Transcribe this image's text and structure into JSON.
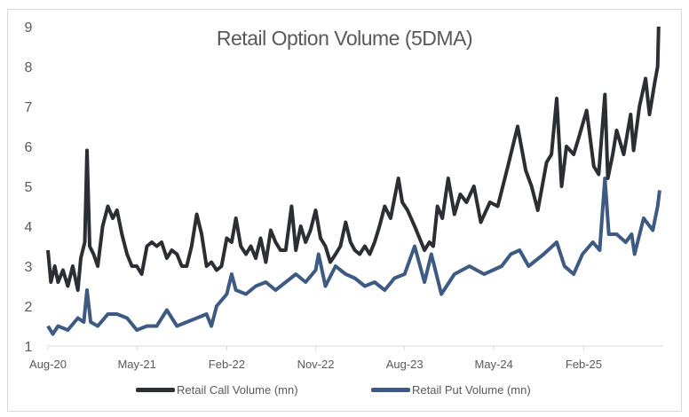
{
  "chart_data": {
    "type": "line",
    "title": "Retail Option Volume (5DMA)",
    "xlabel": "",
    "ylabel": "",
    "ylim": [
      1,
      9
    ],
    "yticks": [
      "1",
      "2",
      "3",
      "4",
      "5",
      "6",
      "7",
      "8",
      "9"
    ],
    "xlim": [
      "2020-08-01",
      "2025-09-25"
    ],
    "xticks": [
      {
        "date": "2020-08-01",
        "label": "Aug-20"
      },
      {
        "date": "2021-05-01",
        "label": "May-21"
      },
      {
        "date": "2022-02-01",
        "label": "Feb-22"
      },
      {
        "date": "2022-11-01",
        "label": "Nov-22"
      },
      {
        "date": "2023-08-01",
        "label": "Aug-23"
      },
      {
        "date": "2024-05-01",
        "label": "May-24"
      },
      {
        "date": "2025-02-01",
        "label": "Feb-25"
      }
    ],
    "grid": false,
    "legend_position": "bottom",
    "series": [
      {
        "name": "Retail Call Volume (mn)",
        "color": "#2b2e33",
        "points": [
          [
            "2020-08-01",
            3.4
          ],
          [
            "2020-08-10",
            2.6
          ],
          [
            "2020-08-22",
            3.0
          ],
          [
            "2020-09-01",
            2.6
          ],
          [
            "2020-09-16",
            2.9
          ],
          [
            "2020-10-01",
            2.5
          ],
          [
            "2020-10-16",
            3.0
          ],
          [
            "2020-11-01",
            2.4
          ],
          [
            "2020-11-10",
            3.2
          ],
          [
            "2020-11-22",
            3.6
          ],
          [
            "2020-11-29",
            5.9
          ],
          [
            "2020-12-07",
            3.5
          ],
          [
            "2020-12-19",
            3.3
          ],
          [
            "2021-01-01",
            3.0
          ],
          [
            "2021-01-16",
            4.0
          ],
          [
            "2021-02-01",
            4.5
          ],
          [
            "2021-02-16",
            4.2
          ],
          [
            "2021-03-01",
            4.4
          ],
          [
            "2021-03-16",
            3.8
          ],
          [
            "2021-04-01",
            3.3
          ],
          [
            "2021-04-16",
            3.0
          ],
          [
            "2021-05-01",
            3.0
          ],
          [
            "2021-05-16",
            2.8
          ],
          [
            "2021-06-01",
            3.5
          ],
          [
            "2021-06-16",
            3.6
          ],
          [
            "2021-07-01",
            3.5
          ],
          [
            "2021-07-16",
            3.6
          ],
          [
            "2021-08-01",
            3.2
          ],
          [
            "2021-08-16",
            3.4
          ],
          [
            "2021-09-01",
            3.3
          ],
          [
            "2021-09-16",
            3.0
          ],
          [
            "2021-10-01",
            3.0
          ],
          [
            "2021-10-16",
            3.5
          ],
          [
            "2021-11-01",
            4.3
          ],
          [
            "2021-11-16",
            3.8
          ],
          [
            "2021-12-01",
            3.0
          ],
          [
            "2021-12-16",
            3.1
          ],
          [
            "2022-01-01",
            2.9
          ],
          [
            "2022-01-16",
            3.0
          ],
          [
            "2022-02-01",
            3.7
          ],
          [
            "2022-02-16",
            3.6
          ],
          [
            "2022-03-01",
            4.2
          ],
          [
            "2022-03-16",
            3.5
          ],
          [
            "2022-04-01",
            3.3
          ],
          [
            "2022-04-16",
            3.5
          ],
          [
            "2022-05-01",
            3.2
          ],
          [
            "2022-05-16",
            3.7
          ],
          [
            "2022-06-01",
            3.1
          ],
          [
            "2022-06-16",
            3.9
          ],
          [
            "2022-07-01",
            3.6
          ],
          [
            "2022-07-16",
            3.4
          ],
          [
            "2022-08-01",
            3.4
          ],
          [
            "2022-08-19",
            4.5
          ],
          [
            "2022-09-01",
            3.4
          ],
          [
            "2022-09-16",
            4.0
          ],
          [
            "2022-10-01",
            3.6
          ],
          [
            "2022-10-16",
            3.9
          ],
          [
            "2022-11-01",
            4.4
          ],
          [
            "2022-11-16",
            3.7
          ],
          [
            "2022-12-01",
            3.5
          ],
          [
            "2022-12-16",
            3.1
          ],
          [
            "2023-01-01",
            3.3
          ],
          [
            "2023-01-16",
            3.5
          ],
          [
            "2023-02-01",
            4.1
          ],
          [
            "2023-02-16",
            3.6
          ],
          [
            "2023-03-01",
            3.4
          ],
          [
            "2023-03-16",
            3.3
          ],
          [
            "2023-04-01",
            3.5
          ],
          [
            "2023-04-16",
            3.3
          ],
          [
            "2023-05-01",
            3.6
          ],
          [
            "2023-05-16",
            4.0
          ],
          [
            "2023-06-01",
            4.5
          ],
          [
            "2023-06-19",
            4.2
          ],
          [
            "2023-07-13",
            5.2
          ],
          [
            "2023-07-25",
            4.6
          ],
          [
            "2023-08-10",
            4.4
          ],
          [
            "2023-09-01",
            4.0
          ],
          [
            "2023-10-01",
            3.4
          ],
          [
            "2023-10-16",
            3.6
          ],
          [
            "2023-10-28",
            3.5
          ],
          [
            "2023-11-10",
            4.5
          ],
          [
            "2023-11-25",
            4.2
          ],
          [
            "2023-12-13",
            5.2
          ],
          [
            "2024-01-01",
            4.3
          ],
          [
            "2024-01-19",
            4.8
          ],
          [
            "2024-02-07",
            4.6
          ],
          [
            "2024-03-01",
            5.0
          ],
          [
            "2024-03-22",
            4.1
          ],
          [
            "2024-04-19",
            4.6
          ],
          [
            "2024-05-13",
            4.5
          ],
          [
            "2024-06-13",
            5.5
          ],
          [
            "2024-07-13",
            6.5
          ],
          [
            "2024-08-07",
            5.4
          ],
          [
            "2024-08-25",
            5.0
          ],
          [
            "2024-09-13",
            4.4
          ],
          [
            "2024-10-10",
            5.6
          ],
          [
            "2024-10-25",
            5.8
          ],
          [
            "2024-11-10",
            7.2
          ],
          [
            "2024-11-25",
            5.0
          ],
          [
            "2024-12-10",
            6.0
          ],
          [
            "2025-01-01",
            5.8
          ],
          [
            "2025-01-16",
            6.2
          ],
          [
            "2025-02-10",
            6.9
          ],
          [
            "2025-03-04",
            5.5
          ],
          [
            "2025-03-19",
            5.3
          ],
          [
            "2025-04-07",
            7.3
          ],
          [
            "2025-04-16",
            5.2
          ],
          [
            "2025-05-01",
            5.8
          ],
          [
            "2025-05-13",
            6.4
          ],
          [
            "2025-06-04",
            5.8
          ],
          [
            "2025-06-25",
            6.8
          ],
          [
            "2025-07-04",
            5.9
          ],
          [
            "2025-07-22",
            7.0
          ],
          [
            "2025-08-10",
            7.7
          ],
          [
            "2025-08-22",
            6.8
          ],
          [
            "2025-09-07",
            7.6
          ],
          [
            "2025-09-16",
            8.0
          ],
          [
            "2025-09-19",
            9.0
          ]
        ]
      },
      {
        "name": "Retail Put Volume (mn)",
        "color": "#3e5a82",
        "points": [
          [
            "2020-08-01",
            1.5
          ],
          [
            "2020-08-16",
            1.3
          ],
          [
            "2020-09-01",
            1.5
          ],
          [
            "2020-10-01",
            1.4
          ],
          [
            "2020-11-01",
            1.7
          ],
          [
            "2020-11-19",
            1.6
          ],
          [
            "2020-11-29",
            2.4
          ],
          [
            "2020-12-10",
            1.6
          ],
          [
            "2021-01-01",
            1.5
          ],
          [
            "2021-02-01",
            1.8
          ],
          [
            "2021-03-01",
            1.8
          ],
          [
            "2021-04-01",
            1.7
          ],
          [
            "2021-05-01",
            1.4
          ],
          [
            "2021-06-01",
            1.5
          ],
          [
            "2021-07-01",
            1.5
          ],
          [
            "2021-08-01",
            1.9
          ],
          [
            "2021-09-01",
            1.5
          ],
          [
            "2021-10-01",
            1.6
          ],
          [
            "2021-11-01",
            1.7
          ],
          [
            "2021-12-01",
            1.8
          ],
          [
            "2021-12-16",
            1.5
          ],
          [
            "2022-01-01",
            2.0
          ],
          [
            "2022-02-01",
            2.3
          ],
          [
            "2022-02-16",
            2.8
          ],
          [
            "2022-03-01",
            2.4
          ],
          [
            "2022-04-01",
            2.3
          ],
          [
            "2022-05-01",
            2.5
          ],
          [
            "2022-06-01",
            2.6
          ],
          [
            "2022-07-01",
            2.4
          ],
          [
            "2022-08-01",
            2.6
          ],
          [
            "2022-09-01",
            2.8
          ],
          [
            "2022-10-01",
            2.6
          ],
          [
            "2022-11-01",
            2.9
          ],
          [
            "2022-11-10",
            3.3
          ],
          [
            "2022-12-01",
            2.5
          ],
          [
            "2023-01-01",
            3.0
          ],
          [
            "2023-02-01",
            2.8
          ],
          [
            "2023-03-01",
            2.7
          ],
          [
            "2023-04-01",
            2.5
          ],
          [
            "2023-05-01",
            2.6
          ],
          [
            "2023-06-01",
            2.4
          ],
          [
            "2023-07-01",
            2.7
          ],
          [
            "2023-08-01",
            2.8
          ],
          [
            "2023-09-01",
            3.5
          ],
          [
            "2023-10-01",
            2.6
          ],
          [
            "2023-10-22",
            3.3
          ],
          [
            "2023-11-22",
            2.3
          ],
          [
            "2024-01-01",
            2.8
          ],
          [
            "2024-02-16",
            3.0
          ],
          [
            "2024-04-01",
            2.8
          ],
          [
            "2024-05-25",
            3.0
          ],
          [
            "2024-06-22",
            3.3
          ],
          [
            "2024-07-19",
            3.4
          ],
          [
            "2024-08-16",
            3.0
          ],
          [
            "2024-10-01",
            3.3
          ],
          [
            "2024-11-10",
            3.6
          ],
          [
            "2024-12-04",
            3.0
          ],
          [
            "2025-01-01",
            2.8
          ],
          [
            "2025-01-28",
            3.3
          ],
          [
            "2025-03-01",
            3.6
          ],
          [
            "2025-03-22",
            3.4
          ],
          [
            "2025-04-07",
            5.2
          ],
          [
            "2025-04-19",
            3.8
          ],
          [
            "2025-05-13",
            3.8
          ],
          [
            "2025-06-10",
            3.6
          ],
          [
            "2025-06-28",
            3.8
          ],
          [
            "2025-07-07",
            3.3
          ],
          [
            "2025-08-04",
            4.2
          ],
          [
            "2025-09-01",
            3.9
          ],
          [
            "2025-09-16",
            4.5
          ],
          [
            "2025-09-22",
            4.9
          ]
        ]
      }
    ]
  }
}
